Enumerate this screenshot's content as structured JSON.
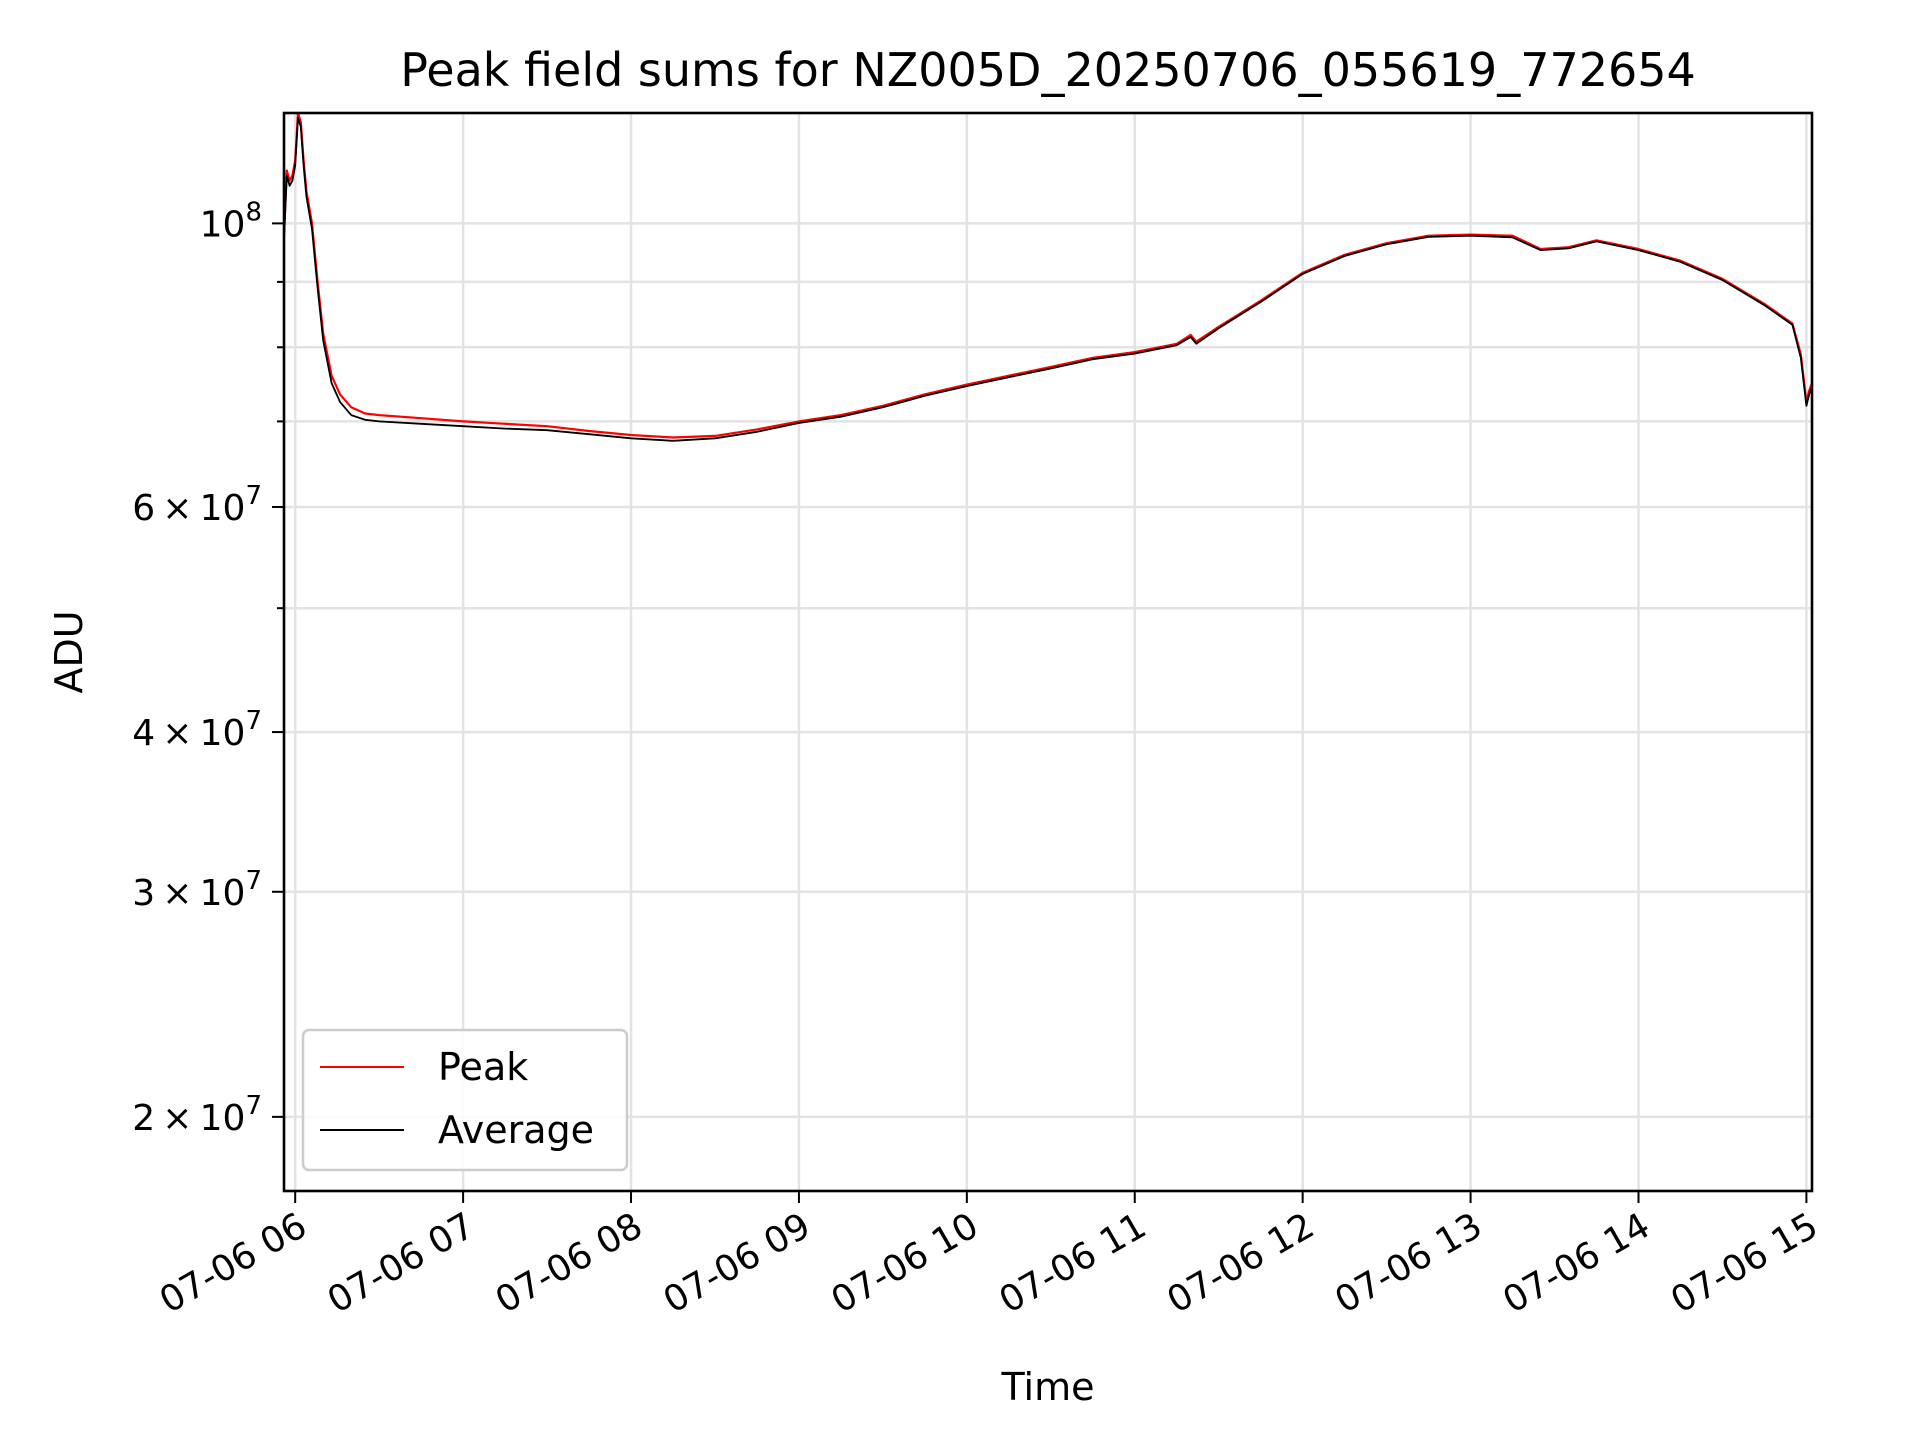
{
  "chart_data": {
    "type": "line",
    "title": "Peak field sums for NZ005D_20250706_055619_772654",
    "xlabel": "Time",
    "ylabel": "ADU",
    "y_scale": "log",
    "ylim": [
      17500000,
      122000000
    ],
    "xlim": [
      "2025-07-06 05:56",
      "2025-07-06 15:02"
    ],
    "grid": true,
    "legend_position": "lower-left",
    "x_ticks": [
      {
        "value": "2025-07-06 06:00",
        "label": "07-06 06"
      },
      {
        "value": "2025-07-06 07:00",
        "label": "07-06 07"
      },
      {
        "value": "2025-07-06 08:00",
        "label": "07-06 08"
      },
      {
        "value": "2025-07-06 09:00",
        "label": "07-06 09"
      },
      {
        "value": "2025-07-06 10:00",
        "label": "07-06 10"
      },
      {
        "value": "2025-07-06 11:00",
        "label": "07-06 11"
      },
      {
        "value": "2025-07-06 12:00",
        "label": "07-06 12"
      },
      {
        "value": "2025-07-06 13:00",
        "label": "07-06 13"
      },
      {
        "value": "2025-07-06 14:00",
        "label": "07-06 14"
      },
      {
        "value": "2025-07-06 15:00",
        "label": "07-06 15"
      }
    ],
    "y_major_ticks": [
      {
        "value": 20000000,
        "mantissa": "2",
        "exponent": "7"
      },
      {
        "value": 30000000,
        "mantissa": "3",
        "exponent": "7"
      },
      {
        "value": 40000000,
        "mantissa": "4",
        "exponent": "7"
      },
      {
        "value": 60000000,
        "mantissa": "6",
        "exponent": "7"
      },
      {
        "value": 100000000,
        "mantissa": "",
        "exponent": "8"
      }
    ],
    "y_minor_ticks": [
      50000000,
      70000000,
      80000000,
      90000000
    ],
    "series": [
      {
        "name": "Peak",
        "color": "#ff0000",
        "points": [
          [
            "2025-07-06 05:56",
            98000000
          ],
          [
            "2025-07-06 05:57",
            110000000
          ],
          [
            "2025-07-06 05:58",
            108000000
          ],
          [
            "2025-07-06 05:59",
            109000000
          ],
          [
            "2025-07-06 06:00",
            112000000
          ],
          [
            "2025-07-06 06:01",
            122000000
          ],
          [
            "2025-07-06 06:02",
            120000000
          ],
          [
            "2025-07-06 06:03",
            112000000
          ],
          [
            "2025-07-06 06:04",
            106000000
          ],
          [
            "2025-07-06 06:06",
            100000000
          ],
          [
            "2025-07-06 06:08",
            90000000
          ],
          [
            "2025-07-06 06:10",
            82000000
          ],
          [
            "2025-07-06 06:13",
            76000000
          ],
          [
            "2025-07-06 06:16",
            73500000
          ],
          [
            "2025-07-06 06:20",
            71800000
          ],
          [
            "2025-07-06 06:25",
            71000000
          ],
          [
            "2025-07-06 06:30",
            70800000
          ],
          [
            "2025-07-06 06:45",
            70400000
          ],
          [
            "2025-07-06 07:00",
            70000000
          ],
          [
            "2025-07-06 07:15",
            69700000
          ],
          [
            "2025-07-06 07:30",
            69400000
          ],
          [
            "2025-07-06 07:45",
            68800000
          ],
          [
            "2025-07-06 08:00",
            68300000
          ],
          [
            "2025-07-06 08:15",
            68000000
          ],
          [
            "2025-07-06 08:30",
            68200000
          ],
          [
            "2025-07-06 08:45",
            69000000
          ],
          [
            "2025-07-06 09:00",
            70000000
          ],
          [
            "2025-07-06 09:15",
            70800000
          ],
          [
            "2025-07-06 09:30",
            72000000
          ],
          [
            "2025-07-06 09:45",
            73500000
          ],
          [
            "2025-07-06 10:00",
            74800000
          ],
          [
            "2025-07-06 10:15",
            76000000
          ],
          [
            "2025-07-06 10:30",
            77200000
          ],
          [
            "2025-07-06 10:45",
            78500000
          ],
          [
            "2025-07-06 11:00",
            79300000
          ],
          [
            "2025-07-06 11:15",
            80500000
          ],
          [
            "2025-07-06 11:20",
            81800000
          ],
          [
            "2025-07-06 11:22",
            80800000
          ],
          [
            "2025-07-06 11:30",
            83000000
          ],
          [
            "2025-07-06 11:45",
            87000000
          ],
          [
            "2025-07-06 12:00",
            91500000
          ],
          [
            "2025-07-06 12:15",
            94500000
          ],
          [
            "2025-07-06 12:30",
            96500000
          ],
          [
            "2025-07-06 12:45",
            97800000
          ],
          [
            "2025-07-06 13:00",
            98000000
          ],
          [
            "2025-07-06 13:15",
            97800000
          ],
          [
            "2025-07-06 13:25",
            95500000
          ],
          [
            "2025-07-06 13:35",
            95800000
          ],
          [
            "2025-07-06 13:45",
            97000000
          ],
          [
            "2025-07-06 14:00",
            95500000
          ],
          [
            "2025-07-06 14:15",
            93500000
          ],
          [
            "2025-07-06 14:30",
            90500000
          ],
          [
            "2025-07-06 14:45",
            86500000
          ],
          [
            "2025-07-06 14:55",
            83500000
          ],
          [
            "2025-07-06 14:58",
            79000000
          ],
          [
            "2025-07-06 15:00",
            72500000
          ],
          [
            "2025-07-06 15:01",
            74000000
          ],
          [
            "2025-07-06 15:02",
            75000000
          ]
        ]
      },
      {
        "name": "Average",
        "color": "#000000",
        "points": [
          [
            "2025-07-06 05:56",
            97000000
          ],
          [
            "2025-07-06 05:57",
            109000000
          ],
          [
            "2025-07-06 05:58",
            107000000
          ],
          [
            "2025-07-06 05:59",
            108000000
          ],
          [
            "2025-07-06 06:00",
            111000000
          ],
          [
            "2025-07-06 06:01",
            121000000
          ],
          [
            "2025-07-06 06:02",
            119000000
          ],
          [
            "2025-07-06 06:03",
            111000000
          ],
          [
            "2025-07-06 06:04",
            105000000
          ],
          [
            "2025-07-06 06:06",
            99000000
          ],
          [
            "2025-07-06 06:08",
            89000000
          ],
          [
            "2025-07-06 06:10",
            81000000
          ],
          [
            "2025-07-06 06:13",
            75000000
          ],
          [
            "2025-07-06 06:16",
            72500000
          ],
          [
            "2025-07-06 06:20",
            70800000
          ],
          [
            "2025-07-06 06:25",
            70200000
          ],
          [
            "2025-07-06 06:30",
            70000000
          ],
          [
            "2025-07-06 06:45",
            69700000
          ],
          [
            "2025-07-06 07:00",
            69400000
          ],
          [
            "2025-07-06 07:15",
            69100000
          ],
          [
            "2025-07-06 07:30",
            68900000
          ],
          [
            "2025-07-06 07:45",
            68400000
          ],
          [
            "2025-07-06 08:00",
            67900000
          ],
          [
            "2025-07-06 08:15",
            67600000
          ],
          [
            "2025-07-06 08:30",
            67900000
          ],
          [
            "2025-07-06 08:45",
            68700000
          ],
          [
            "2025-07-06 09:00",
            69800000
          ],
          [
            "2025-07-06 09:15",
            70600000
          ],
          [
            "2025-07-06 09:30",
            71800000
          ],
          [
            "2025-07-06 09:45",
            73300000
          ],
          [
            "2025-07-06 10:00",
            74600000
          ],
          [
            "2025-07-06 10:15",
            75800000
          ],
          [
            "2025-07-06 10:30",
            77000000
          ],
          [
            "2025-07-06 10:45",
            78300000
          ],
          [
            "2025-07-06 11:00",
            79100000
          ],
          [
            "2025-07-06 11:15",
            80300000
          ],
          [
            "2025-07-06 11:20",
            81500000
          ],
          [
            "2025-07-06 11:22",
            80500000
          ],
          [
            "2025-07-06 11:30",
            82800000
          ],
          [
            "2025-07-06 11:45",
            86800000
          ],
          [
            "2025-07-06 12:00",
            91300000
          ],
          [
            "2025-07-06 12:15",
            94300000
          ],
          [
            "2025-07-06 12:30",
            96300000
          ],
          [
            "2025-07-06 12:45",
            97600000
          ],
          [
            "2025-07-06 13:00",
            97800000
          ],
          [
            "2025-07-06 13:15",
            97500000
          ],
          [
            "2025-07-06 13:25",
            95300000
          ],
          [
            "2025-07-06 13:35",
            95600000
          ],
          [
            "2025-07-06 13:45",
            96800000
          ],
          [
            "2025-07-06 14:00",
            95300000
          ],
          [
            "2025-07-06 14:15",
            93300000
          ],
          [
            "2025-07-06 14:30",
            90300000
          ],
          [
            "2025-07-06 14:45",
            86300000
          ],
          [
            "2025-07-06 14:55",
            83300000
          ],
          [
            "2025-07-06 14:58",
            78500000
          ],
          [
            "2025-07-06 15:00",
            72000000
          ],
          [
            "2025-07-06 15:01",
            73500000
          ],
          [
            "2025-07-06 15:02",
            74500000
          ]
        ]
      }
    ]
  }
}
